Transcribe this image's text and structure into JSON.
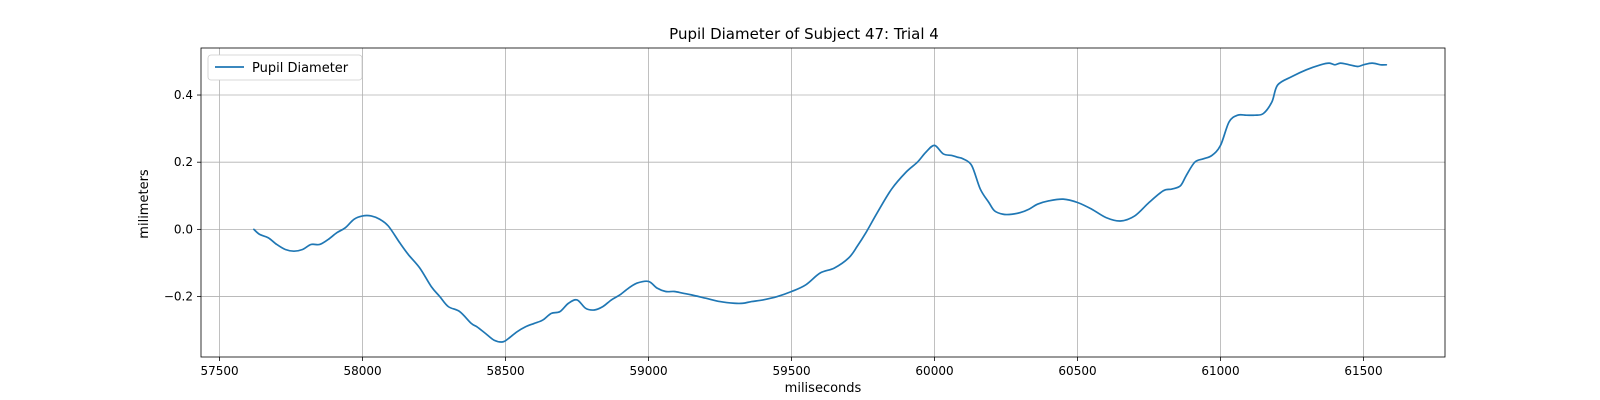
{
  "chart_data": {
    "type": "line",
    "title": "Pupil Diameter of Subject 47: Trial 4",
    "xlabel": "miliseconds",
    "ylabel": "milimeters",
    "xlim": [
      57435,
      61785
    ],
    "ylim": [
      -0.38,
      0.54
    ],
    "x_ticks": [
      57500,
      58000,
      58500,
      59000,
      59500,
      60000,
      60500,
      61000,
      61500
    ],
    "x_tick_labels": [
      "57500",
      "58000",
      "58500",
      "59000",
      "59500",
      "60000",
      "60500",
      "61000",
      "61500"
    ],
    "y_ticks": [
      -0.2,
      0.0,
      0.2,
      0.4
    ],
    "y_tick_labels": [
      "−0.2",
      "0.0",
      "0.2",
      "0.4"
    ],
    "grid": true,
    "legend_position": "upper-left",
    "colors": {
      "series": "#1f77b4",
      "grid": "#b0b0b0",
      "axes": "#000000"
    },
    "series": [
      {
        "name": "Pupil Diameter",
        "x": [
          57620,
          57640,
          57670,
          57700,
          57730,
          57760,
          57790,
          57820,
          57850,
          57880,
          57910,
          57940,
          57970,
          58000,
          58030,
          58060,
          58090,
          58130,
          58160,
          58200,
          58240,
          58270,
          58300,
          58340,
          58380,
          58400,
          58430,
          58460,
          58490,
          58510,
          58540,
          58570,
          58600,
          58630,
          58660,
          58690,
          58720,
          58750,
          58780,
          58810,
          58840,
          58870,
          58900,
          58930,
          58960,
          59000,
          59030,
          59060,
          59090,
          59120,
          59150,
          59200,
          59250,
          59300,
          59330,
          59360,
          59400,
          59450,
          59500,
          59550,
          59600,
          59650,
          59700,
          59730,
          59760,
          59800,
          59850,
          59900,
          59940,
          59970,
          60000,
          60030,
          60060,
          60080,
          60100,
          60130,
          60160,
          60190,
          60210,
          60240,
          60270,
          60300,
          60330,
          60360,
          60400,
          60450,
          60500,
          60550,
          60600,
          60650,
          60700,
          60750,
          60800,
          60830,
          60860,
          60880,
          60910,
          60940,
          60970,
          61000,
          61030,
          61060,
          61090,
          61120,
          61150,
          61180,
          61200,
          61250,
          61300,
          61350,
          61380,
          61400,
          61420,
          61450,
          61480,
          61500,
          61530,
          61560,
          61580
        ],
        "y": [
          0.0,
          -0.015,
          -0.025,
          -0.045,
          -0.06,
          -0.065,
          -0.06,
          -0.045,
          -0.045,
          -0.03,
          -0.01,
          0.005,
          0.03,
          0.04,
          0.04,
          0.03,
          0.01,
          -0.04,
          -0.075,
          -0.115,
          -0.17,
          -0.2,
          -0.23,
          -0.245,
          -0.28,
          -0.29,
          -0.31,
          -0.33,
          -0.335,
          -0.325,
          -0.305,
          -0.29,
          -0.28,
          -0.27,
          -0.25,
          -0.245,
          -0.22,
          -0.21,
          -0.235,
          -0.24,
          -0.23,
          -0.21,
          -0.195,
          -0.175,
          -0.16,
          -0.155,
          -0.175,
          -0.185,
          -0.185,
          -0.19,
          -0.195,
          -0.205,
          -0.215,
          -0.22,
          -0.22,
          -0.215,
          -0.21,
          -0.2,
          -0.185,
          -0.165,
          -0.13,
          -0.115,
          -0.085,
          -0.05,
          -0.01,
          0.05,
          0.12,
          0.17,
          0.2,
          0.23,
          0.25,
          0.225,
          0.22,
          0.215,
          0.21,
          0.19,
          0.12,
          0.08,
          0.055,
          0.045,
          0.045,
          0.05,
          0.06,
          0.075,
          0.085,
          0.09,
          0.08,
          0.06,
          0.035,
          0.025,
          0.04,
          0.08,
          0.115,
          0.12,
          0.13,
          0.16,
          0.2,
          0.21,
          0.22,
          0.25,
          0.32,
          0.34,
          0.34,
          0.34,
          0.345,
          0.38,
          0.43,
          0.455,
          0.475,
          0.49,
          0.495,
          0.49,
          0.495,
          0.49,
          0.485,
          0.49,
          0.495,
          0.49,
          0.49
        ]
      }
    ]
  }
}
